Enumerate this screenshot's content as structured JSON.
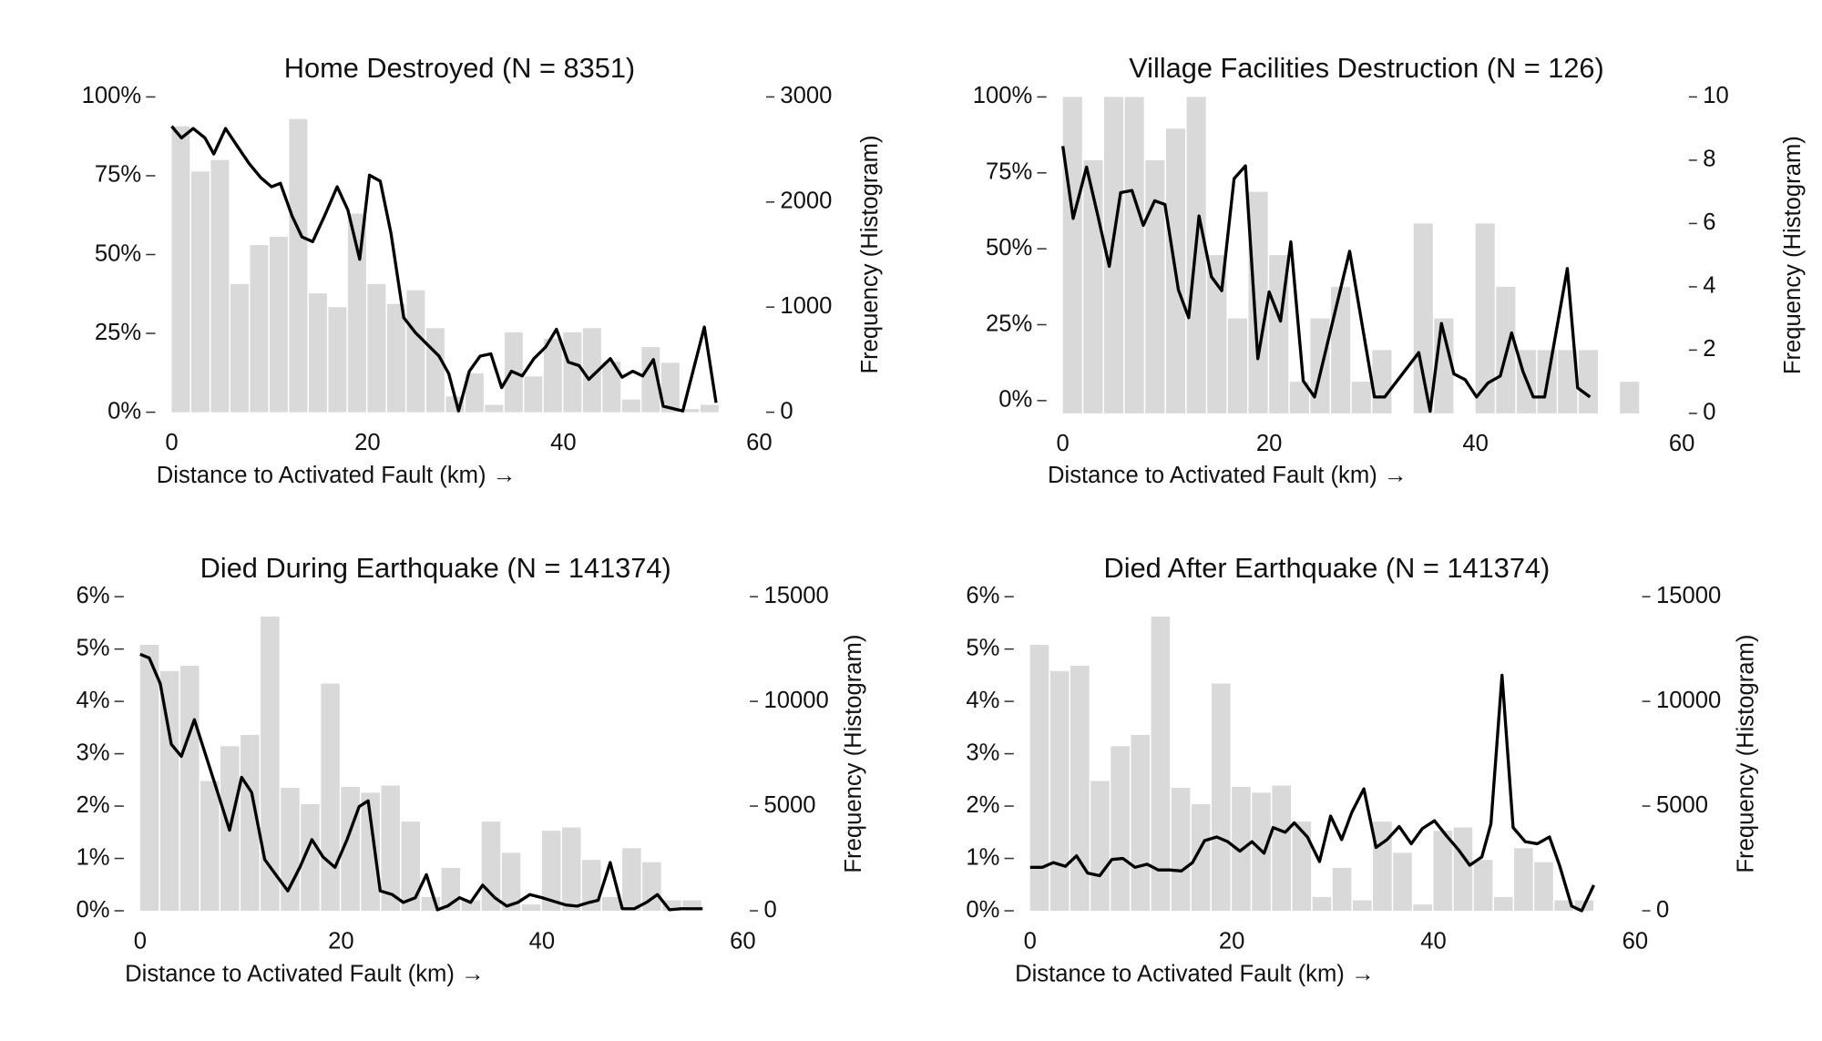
{
  "chart_data": [
    {
      "type": "histogram",
      "title": "Home Destroyed (N = 8351)",
      "xlabel": "Distance to Activated Fault (km) →",
      "y2label": "Frequency (Histogram)",
      "bins": [
        0,
        2,
        4,
        6,
        8,
        10,
        12,
        14,
        16,
        18,
        20,
        22,
        24,
        26,
        28,
        30,
        32,
        34,
        36,
        38,
        40,
        42,
        44,
        46,
        48,
        50,
        52,
        54,
        56
      ],
      "counts": [
        2720,
        2290,
        2400,
        1220,
        1590,
        1670,
        2790,
        1130,
        1000,
        1890,
        1220,
        1030,
        1160,
        800,
        150,
        370,
        70,
        760,
        340,
        700,
        760,
        800,
        480,
        120,
        620,
        470,
        30,
        70
      ],
      "color": "#d9d9d9",
      "series": [
        {
          "color": "#000000",
          "x": [
            0,
            1.0,
            2.2,
            3.4,
            4.3,
            5.5,
            6.7,
            7.9,
            9.1,
            10.2,
            11.1,
            12.3,
            13.3,
            14.4,
            15.6,
            16.9,
            18.0,
            19.2,
            20.2,
            21.3,
            22.4,
            23.7,
            24.9,
            26.1,
            27.3,
            28.3,
            29.3,
            30.4,
            31.5,
            32.6,
            33.7,
            34.7,
            35.8,
            37.0,
            38.2,
            39.3,
            40.5,
            41.6,
            42.6,
            43.7,
            44.8,
            46.0,
            47.1,
            48.1,
            49.2,
            50.2,
            52.2,
            54.4,
            55.6
          ],
          "values": [
            90.7,
            87.0,
            90.0,
            87.0,
            81.9,
            90.0,
            84.4,
            78.9,
            74.4,
            71.5,
            72.6,
            62.2,
            55.6,
            54.1,
            62.2,
            71.5,
            64.1,
            48.5,
            75.2,
            73.3,
            56.7,
            30.0,
            25.2,
            21.5,
            17.8,
            12.2,
            0.4,
            13.0,
            17.8,
            18.5,
            7.8,
            13.0,
            11.5,
            17.0,
            20.7,
            26.3,
            15.9,
            14.8,
            10.4,
            13.7,
            17.0,
            11.1,
            13.0,
            11.5,
            16.7,
            1.9,
            0.4,
            27.0,
            3.0
          ]
        }
      ],
      "xlim": [
        0,
        60
      ],
      "xticks": [
        0,
        20,
        40,
        60
      ],
      "ylim": [
        0,
        100
      ],
      "yticks": [
        {
          "value": 0,
          "label": "0%"
        },
        {
          "value": 25,
          "label": "25%"
        },
        {
          "value": 50,
          "label": "50%"
        },
        {
          "value": 75,
          "label": "75%"
        },
        {
          "value": 100,
          "label": "100%"
        }
      ],
      "y2lim": [
        0,
        3000
      ],
      "y2ticks": [
        0,
        1000,
        2000,
        3000
      ]
    },
    {
      "type": "histogram",
      "title": "Village Facilities Destruction (N = 126)",
      "xlabel": "Distance to Activated Fault (km) →",
      "y2label": "Frequency (Histogram)",
      "bins": [
        0,
        2,
        4,
        6,
        8,
        10,
        12,
        14,
        16,
        18,
        20,
        22,
        24,
        26,
        28,
        30,
        32,
        34,
        36,
        38,
        40,
        42,
        44,
        46,
        48,
        50,
        52,
        54,
        56
      ],
      "counts": [
        10,
        8,
        10,
        10,
        8,
        9,
        10,
        5,
        3,
        7,
        5,
        1,
        3,
        4,
        1,
        2,
        0,
        6,
        3,
        0,
        6,
        4,
        2,
        2,
        2,
        2,
        0,
        1
      ],
      "color": "#d9d9d9",
      "series": [
        {
          "color": "#000000",
          "x": [
            0,
            1,
            2.3,
            3.4,
            4.5,
            5.6,
            6.7,
            7.8,
            8.9,
            9.9,
            11.2,
            12.2,
            13.2,
            14.4,
            15.4,
            16.6,
            17.7,
            18.9,
            20.0,
            21.1,
            22.1,
            23.3,
            24.4,
            27.8,
            30.2,
            31.2,
            34.5,
            35.6,
            36.7,
            37.9,
            39.0,
            40.1,
            41.2,
            42.4,
            43.5,
            44.6,
            45.6,
            46.7,
            48.9,
            49.9,
            51.1
          ],
          "values": [
            83.8,
            60,
            76.9,
            60.8,
            44.2,
            68.5,
            69.2,
            57.7,
            65.8,
            64.6,
            36.5,
            27.3,
            60.8,
            40.8,
            36.2,
            73.1,
            77.3,
            13.8,
            35.8,
            26.2,
            52.3,
            6.5,
            1.2,
            49.2,
            1.2,
            1.2,
            15.8,
            -3.5,
            25.4,
            8.8,
            6.9,
            1.2,
            5.8,
            8.1,
            22.3,
            9.6,
            1.2,
            1.2,
            43.5,
            4.2,
            1.2
          ]
        }
      ],
      "xlim": [
        0,
        60
      ],
      "xticks": [
        0,
        20,
        40,
        60
      ],
      "ylim": [
        -4.2,
        100
      ],
      "yticks": [
        {
          "value": 0,
          "label": "0%"
        },
        {
          "value": 25,
          "label": "25%"
        },
        {
          "value": 50,
          "label": "50%"
        },
        {
          "value": 75,
          "label": "75%"
        },
        {
          "value": 100,
          "label": "100%"
        }
      ],
      "y2lim": [
        0,
        10
      ],
      "y2ticks": [
        0,
        2,
        4,
        6,
        8,
        10
      ]
    },
    {
      "type": "histogram",
      "title": "Died During Earthquake (N = 141374)",
      "xlabel": "Distance to Activated Fault (km) →",
      "y2label": "Frequency (Histogram)",
      "bins": [
        0,
        2,
        4,
        6,
        8,
        10,
        12,
        14,
        16,
        18,
        20,
        22,
        24,
        26,
        28,
        30,
        32,
        34,
        36,
        38,
        40,
        42,
        44,
        46,
        48,
        50,
        52,
        54,
        56
      ],
      "counts": [
        12700,
        11450,
        11700,
        6200,
        7860,
        8400,
        14050,
        5870,
        5090,
        10850,
        5920,
        5640,
        5980,
        4260,
        660,
        2050,
        500,
        4260,
        2770,
        300,
        3820,
        3980,
        2430,
        660,
        2990,
        2320,
        500,
        500
      ],
      "color": "#d9d9d9",
      "series": [
        {
          "color": "#000000",
          "x": [
            0,
            0.9,
            2.0,
            3.1,
            4.1,
            5.4,
            6.6,
            7.8,
            8.9,
            10.1,
            11.1,
            12.4,
            13.5,
            14.7,
            15.9,
            17.1,
            18.2,
            19.4,
            20.6,
            21.8,
            22.7,
            23.9,
            25.1,
            26.2,
            27.4,
            28.5,
            29.6,
            30.6,
            31.8,
            32.9,
            34.1,
            35.3,
            36.5,
            37.6,
            38.8,
            40.0,
            41.2,
            42.4,
            43.5,
            44.7,
            45.6,
            46.8,
            48.0,
            49.2,
            50.4,
            51.5,
            52.7,
            53.9,
            56.0
          ],
          "values": [
            4.9,
            4.83,
            4.34,
            3.18,
            2.95,
            3.65,
            2.93,
            2.21,
            1.54,
            2.55,
            2.26,
            0.98,
            0.69,
            0.38,
            0.83,
            1.36,
            1.03,
            0.83,
            1.36,
            1.99,
            2.1,
            0.38,
            0.31,
            0.16,
            0.25,
            0.69,
            0.02,
            0.09,
            0.25,
            0.16,
            0.49,
            0.25,
            0.09,
            0.16,
            0.31,
            0.25,
            0.18,
            0.11,
            0.09,
            0.16,
            0.2,
            0.92,
            0.04,
            0.04,
            0.16,
            0.31,
            0.02,
            0.04,
            0.04
          ]
        }
      ],
      "xlim": [
        0,
        60
      ],
      "xticks": [
        0,
        20,
        40,
        60
      ],
      "ylim": [
        0,
        6
      ],
      "yticks": [
        {
          "value": 0,
          "label": "0%"
        },
        {
          "value": 1,
          "label": "1%"
        },
        {
          "value": 2,
          "label": "2%"
        },
        {
          "value": 3,
          "label": "3%"
        },
        {
          "value": 4,
          "label": "4%"
        },
        {
          "value": 5,
          "label": "5%"
        },
        {
          "value": 6,
          "label": "6%"
        }
      ],
      "y2lim": [
        0,
        15000
      ],
      "y2ticks": [
        0,
        5000,
        10000,
        15000
      ]
    },
    {
      "type": "histogram",
      "title": "Died After Earthquake (N = 141374)",
      "xlabel": "Distance to Activated Fault (km) →",
      "y2label": "Frequency (Histogram)",
      "bins": [
        0,
        2,
        4,
        6,
        8,
        10,
        12,
        14,
        16,
        18,
        20,
        22,
        24,
        26,
        28,
        30,
        32,
        34,
        36,
        38,
        40,
        42,
        44,
        46,
        48,
        50,
        52,
        54,
        56
      ],
      "counts": [
        12700,
        11450,
        11700,
        6200,
        7860,
        8400,
        14050,
        5870,
        5090,
        10850,
        5920,
        5640,
        5980,
        4260,
        660,
        2050,
        500,
        4260,
        2770,
        300,
        3820,
        3980,
        2430,
        660,
        2990,
        2320,
        500,
        500
      ],
      "color": "#d9d9d9",
      "series": [
        {
          "color": "#000000",
          "x": [
            0,
            1.2,
            2.3,
            3.5,
            4.6,
            5.7,
            6.9,
            8.1,
            9.2,
            10.4,
            11.6,
            12.7,
            13.8,
            15.0,
            16.1,
            17.3,
            18.5,
            19.6,
            20.8,
            22.0,
            23.2,
            24.1,
            25.3,
            26.2,
            27.5,
            28.7,
            29.8,
            30.9,
            31.9,
            33.1,
            34.3,
            35.4,
            36.6,
            37.8,
            38.9,
            40.1,
            41.3,
            42.5,
            43.6,
            44.8,
            45.7,
            46.8,
            47.9,
            49.1,
            50.3,
            51.5,
            52.5,
            53.7,
            54.7,
            55.9
          ],
          "values": [
            0.83,
            0.83,
            0.92,
            0.85,
            1.05,
            0.72,
            0.67,
            0.98,
            1.0,
            0.83,
            0.89,
            0.78,
            0.78,
            0.76,
            0.92,
            1.34,
            1.41,
            1.32,
            1.14,
            1.32,
            1.1,
            1.59,
            1.5,
            1.68,
            1.41,
            0.94,
            1.81,
            1.36,
            1.88,
            2.33,
            1.21,
            1.36,
            1.61,
            1.28,
            1.57,
            1.72,
            1.43,
            1.16,
            0.87,
            1.03,
            1.66,
            4.5,
            1.59,
            1.32,
            1.28,
            1.41,
            0.87,
            0.09,
            0.0,
            0.49
          ]
        }
      ],
      "xlim": [
        0,
        60
      ],
      "xticks": [
        0,
        20,
        40,
        60
      ],
      "ylim": [
        0,
        6
      ],
      "yticks": [
        {
          "value": 0,
          "label": "0%"
        },
        {
          "value": 1,
          "label": "1%"
        },
        {
          "value": 2,
          "label": "2%"
        },
        {
          "value": 3,
          "label": "3%"
        },
        {
          "value": 4,
          "label": "4%"
        },
        {
          "value": 5,
          "label": "5%"
        },
        {
          "value": 6,
          "label": "6%"
        }
      ],
      "y2lim": [
        0,
        15000
      ],
      "y2ticks": [
        0,
        5000,
        10000,
        15000
      ]
    }
  ]
}
